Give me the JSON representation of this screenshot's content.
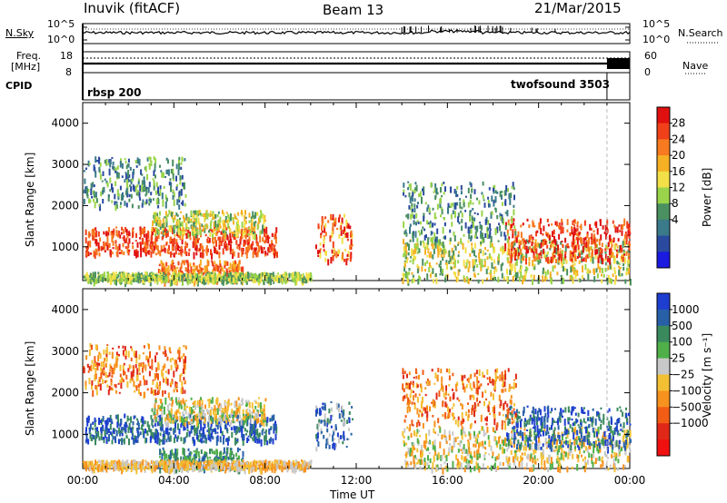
{
  "header": {
    "station": "Inuvik (fitACF)",
    "beam": "Beam 13",
    "date": "21/Mar/2015"
  },
  "noise_panel": {
    "left_label": "N.Sky",
    "right_label": "N.Search",
    "left_ticks": [
      "10^5",
      "10^0"
    ],
    "right_ticks": [
      "10^5",
      "10^0"
    ]
  },
  "freq_panel": {
    "left_label": "Freq.",
    "left_unit": "[MHz]",
    "left_ticks": [
      "18",
      "8"
    ],
    "right_label": "Nave",
    "right_ticks": [
      "60",
      "0"
    ]
  },
  "cpid_panel": {
    "label": "CPID",
    "programs": [
      {
        "name": "rbsp 200",
        "start_hour": 0,
        "end_hour": 23.0
      },
      {
        "name": "twofsound 3503",
        "start_hour": 23.0,
        "end_hour": 24
      }
    ]
  },
  "chart_data": [
    {
      "type": "heatmap",
      "name": "power",
      "ylabel": "Slant Range [km]",
      "colorbar_label": "Power [dB]",
      "colorbar_ticks": [
        "28",
        "24",
        "20",
        "16",
        "12",
        "8",
        "4"
      ],
      "colorbar_colors": [
        "#e01010",
        "#f0401a",
        "#f77a20",
        "#f6b024",
        "#f3e048",
        "#9ad44a",
        "#4a9060",
        "#3a7a8a",
        "#2a4aa0",
        "#1a1ae0"
      ],
      "ylim": [
        180,
        4500
      ],
      "yticks": [
        1000,
        2000,
        3000,
        4000
      ],
      "xlim": [
        0,
        24
      ]
    },
    {
      "type": "heatmap",
      "name": "velocity",
      "xlabel": "Time UT",
      "ylabel": "Slant Range [km]",
      "colorbar_label": "Velocity [m s⁻¹]",
      "colorbar_ticks": [
        "1000",
        "500",
        "100",
        "25",
        "−25",
        "−100",
        "−500",
        "−1000"
      ],
      "colorbar_colors": [
        "#1e3ed0",
        "#2860a8",
        "#3a8a5e",
        "#4fb04a",
        "#c8c8c8",
        "#f3c034",
        "#f7921e",
        "#f25c14",
        "#e02818",
        "#f01010"
      ],
      "ylim": [
        180,
        4500
      ],
      "yticks": [
        1000,
        2000,
        3000,
        4000
      ],
      "xlim": [
        0,
        24
      ],
      "xticks": [
        "00:00",
        "04:00",
        "08:00",
        "12:00",
        "16:00",
        "20:00",
        "00:00"
      ]
    }
  ]
}
